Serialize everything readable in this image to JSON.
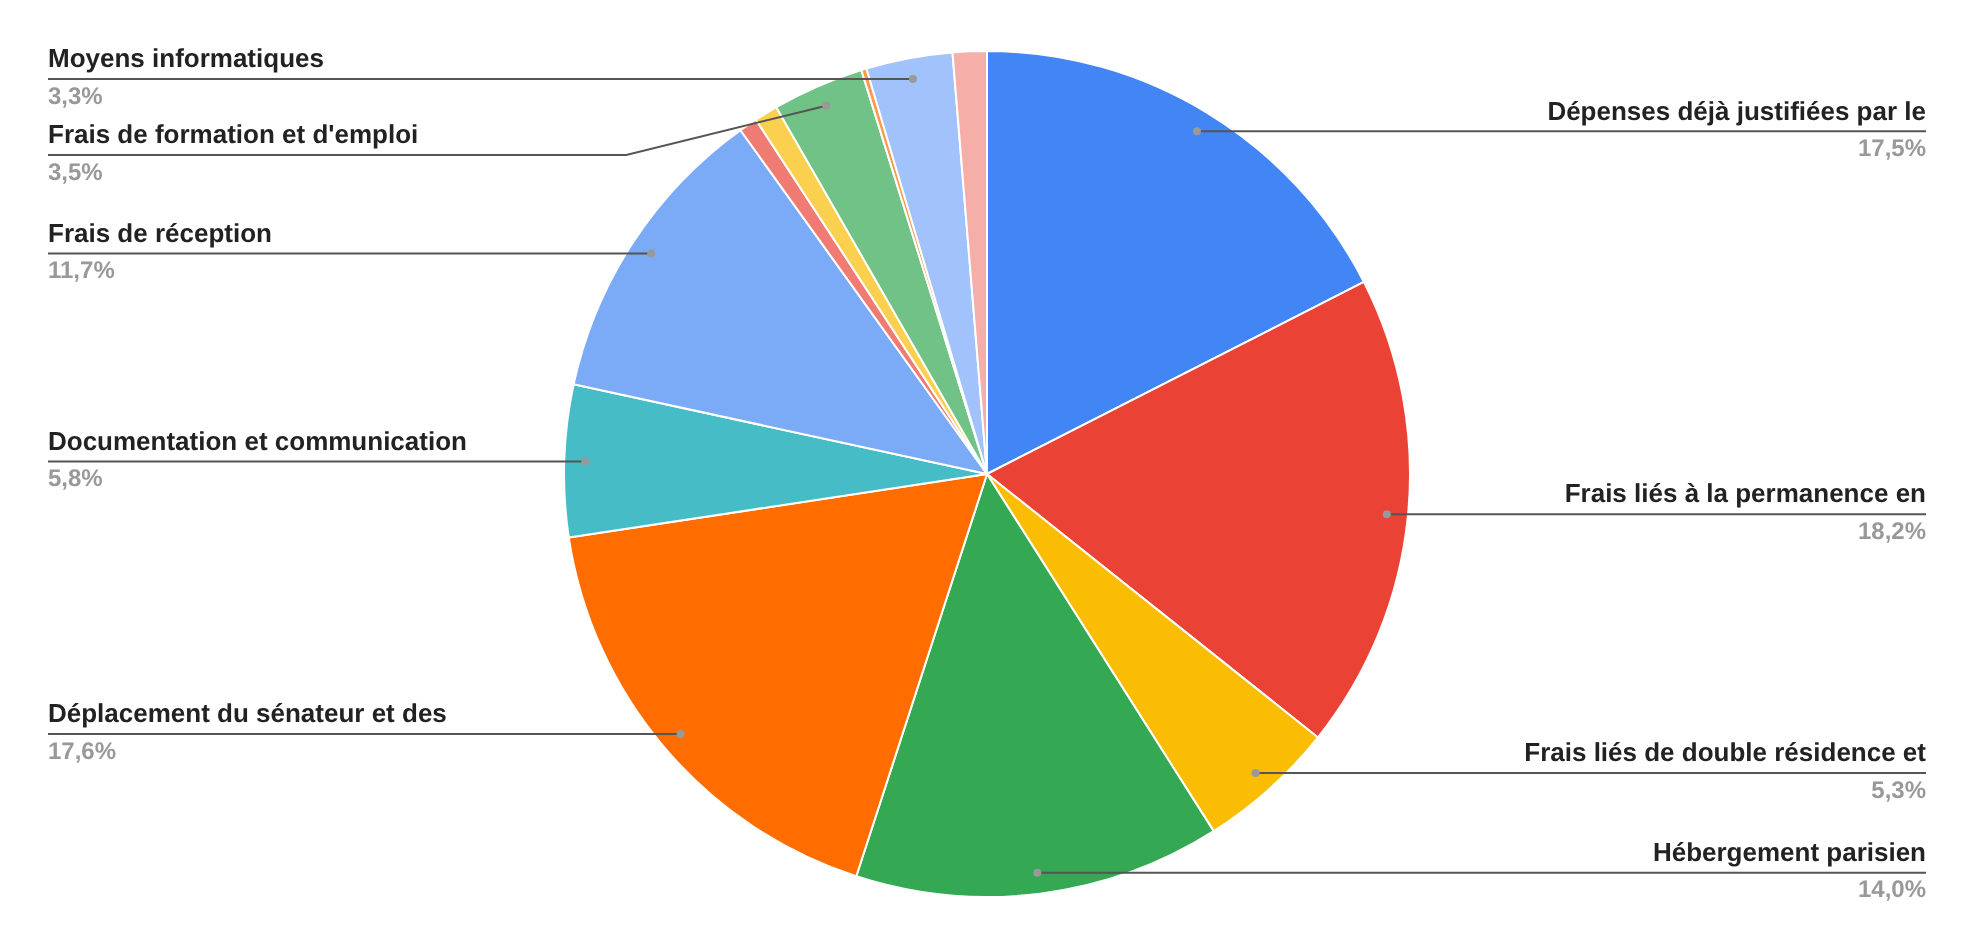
{
  "chart_data": {
    "type": "pie",
    "categories": [
      "Dépenses déjà justifiées par le",
      "Frais liés à la permanence en",
      "Frais liés de double résidence et",
      "Hébergement parisien",
      "Déplacement du sénateur et des",
      "Documentation et communication",
      "Frais de réception",
      null,
      null,
      "Frais de formation et d'emploi",
      null,
      "Moyens informatiques",
      null
    ],
    "values": [
      17.5,
      18.2,
      5.3,
      14.0,
      17.6,
      5.8,
      11.7,
      0.7,
      0.9,
      3.5,
      0.2,
      3.3,
      1.3
    ],
    "value_labels": [
      "17,5%",
      "18,2%",
      "5,3%",
      "14,0%",
      "17,6%",
      "5,8%",
      "11,7%",
      null,
      null,
      "3,5%",
      null,
      "3,3%",
      null
    ],
    "colors": [
      "#4285f4",
      "#ea4335",
      "#fbbc04",
      "#34a853",
      "#ff6d01",
      "#46bdc6",
      "#7baaf7",
      "#f07b72",
      "#fcd04f",
      "#71c287",
      "#ff994d",
      "#a1c2fa",
      "#f6aea9"
    ],
    "legend": false
  }
}
